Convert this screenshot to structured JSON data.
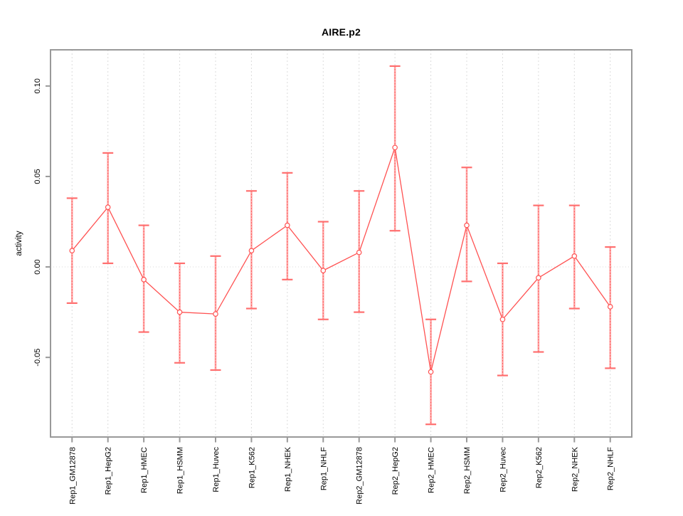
{
  "chart_data": {
    "type": "line",
    "title": "AIRE.p2",
    "xlabel": "",
    "ylabel": "activity",
    "categories": [
      "Rep1_GM12878",
      "Rep1_HepG2",
      "Rep1_HMEC",
      "Rep1_HSMM",
      "Rep1_Huvec",
      "Rep1_K562",
      "Rep1_NHEK",
      "Rep1_NHLF",
      "Rep2_GM12878",
      "Rep2_HepG2",
      "Rep2_HMEC",
      "Rep2_HSMM",
      "Rep2_Huvec",
      "Rep2_K562",
      "Rep2_NHEK",
      "Rep2_NHLF"
    ],
    "series": [
      {
        "name": "activity",
        "values": [
          0.009,
          0.033,
          -0.007,
          -0.025,
          -0.026,
          0.009,
          0.023,
          -0.002,
          0.008,
          0.066,
          -0.058,
          0.023,
          -0.029,
          -0.006,
          0.006,
          -0.022
        ],
        "upper": [
          0.038,
          0.063,
          0.023,
          0.002,
          0.006,
          0.042,
          0.052,
          0.025,
          0.042,
          0.111,
          -0.029,
          0.055,
          0.002,
          0.034,
          0.034,
          0.011
        ],
        "lower": [
          -0.02,
          0.002,
          -0.036,
          -0.053,
          -0.057,
          -0.023,
          -0.007,
          -0.029,
          -0.025,
          0.02,
          -0.087,
          -0.008,
          -0.06,
          -0.047,
          -0.023,
          -0.056
        ]
      }
    ],
    "ylim": [
      -0.094,
      0.12
    ],
    "yticks": [
      -0.05,
      0.0,
      0.05,
      0.1
    ],
    "ytick_labels": [
      "-0.05",
      "0.00",
      "0.05",
      "0.10"
    ],
    "grid": "vertical-dashed-per-category, dotted-horizontal-at-zero",
    "legend": "none",
    "marker": "open-circle",
    "colors": {
      "series": "#ff5252",
      "errorbar_underlay": "#ffa8a8",
      "errorbar_cap": "#ff6f6f",
      "axis": "#999999",
      "grid": "#dcdcdc",
      "zero_line": "#d9d9d9",
      "text": "#000000",
      "background": "#ffffff"
    }
  }
}
